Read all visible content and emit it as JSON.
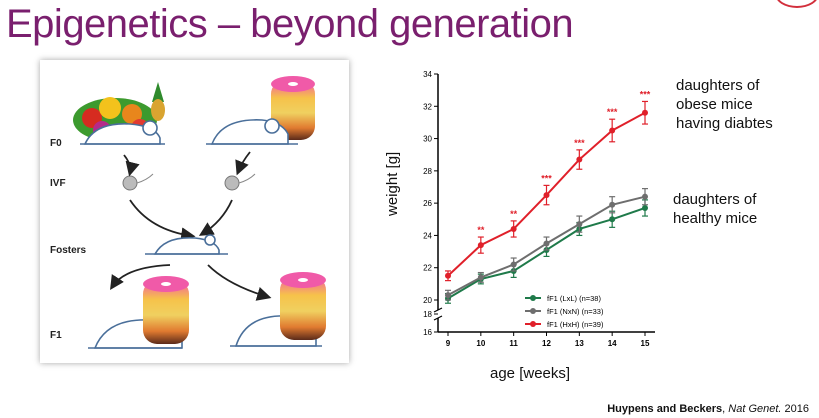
{
  "title": "Epigenetics – beyond generation",
  "diagram": {
    "labels": [
      "F0",
      "IVF",
      "Fosters",
      "F1"
    ]
  },
  "annotations": {
    "obese": [
      "daughters of",
      "obese mice",
      "having diabtes"
    ],
    "healthy": [
      "daughters of",
      "healthy mice"
    ]
  },
  "citation": {
    "authors": "Huypens and Beckers",
    "sep": ", ",
    "journal": "Nat Genet.",
    "year": " 2016"
  },
  "colors": {
    "title": "#7a1f6e",
    "LxL": "#1f7a4a",
    "NxN": "#6e6e6e",
    "HxH": "#e0202a"
  },
  "chart_data": {
    "type": "line",
    "xlabel": "age [weeks]",
    "ylabel": "weight [g]",
    "x": [
      9,
      10,
      11,
      12,
      13,
      14,
      15
    ],
    "xlim": [
      9,
      15
    ],
    "ylim": [
      16,
      34
    ],
    "yticks": [
      16,
      18,
      20,
      22,
      24,
      26,
      28,
      30,
      32,
      34
    ],
    "axis_break": [
      18,
      19
    ],
    "grid": false,
    "legend_position": "bottom-right",
    "series": [
      {
        "name": "fF1 (LxL) (n=38)",
        "color": "#1f7a4a",
        "values": [
          20.1,
          21.3,
          21.8,
          23.1,
          24.4,
          25.0,
          25.7
        ],
        "err": [
          0.3,
          0.3,
          0.4,
          0.4,
          0.4,
          0.5,
          0.5
        ],
        "sig": [
          "",
          "",
          "",
          "",
          "",
          "",
          ""
        ]
      },
      {
        "name": "fF1 (NxN) (n=33)",
        "color": "#6e6e6e",
        "values": [
          20.3,
          21.4,
          22.2,
          23.5,
          24.7,
          25.9,
          26.4
        ],
        "err": [
          0.3,
          0.3,
          0.4,
          0.4,
          0.5,
          0.5,
          0.5
        ],
        "sig": [
          "",
          "",
          "",
          "",
          "",
          "",
          ""
        ]
      },
      {
        "name": "fF1 (HxH) (n=39)",
        "color": "#e0202a",
        "values": [
          21.5,
          23.4,
          24.4,
          26.5,
          28.7,
          30.5,
          31.6
        ],
        "err": [
          0.3,
          0.5,
          0.5,
          0.6,
          0.6,
          0.7,
          0.7
        ],
        "sig": [
          "",
          "**",
          "**",
          "***",
          "***",
          "***",
          "***"
        ]
      }
    ]
  }
}
